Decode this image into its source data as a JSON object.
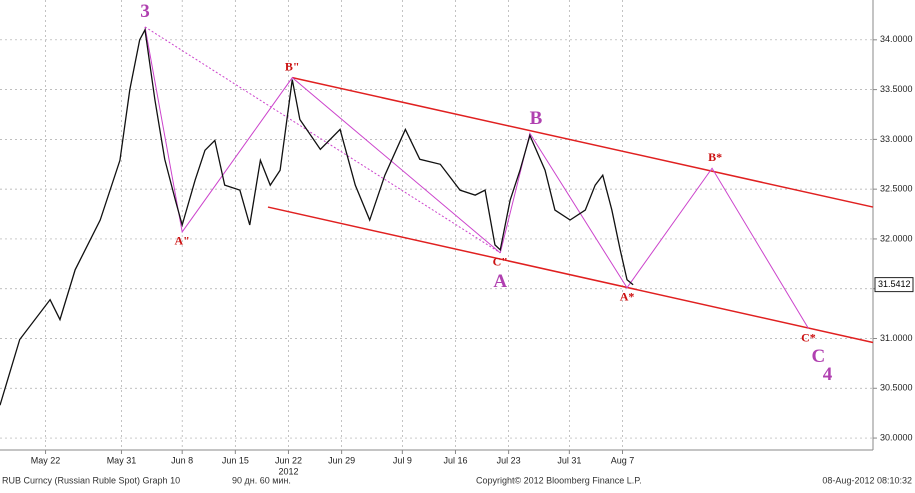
{
  "chart_data": {
    "type": "line",
    "x": [
      0,
      2.6,
      6.6,
      7.9,
      9.9,
      13.2,
      15.8,
      17.1,
      18.4,
      19.1,
      20.4,
      21.7,
      23.1,
      24,
      25.7,
      27,
      28.3,
      29.6,
      31.6,
      32.9,
      34.3,
      35.6,
      36.9,
      38.5,
      39.5,
      42.2,
      44.8,
      46.8,
      48.7,
      50.7,
      53.4,
      55.3,
      58,
      60.6,
      62.6,
      63.9,
      65.2,
      65.9,
      67.2,
      68.5,
      69.8,
      71.8,
      73.1,
      75.1,
      77.1,
      78.4,
      79.4,
      80.6,
      81.7,
      82.6,
      83.4
    ],
    "series": [
      {
        "name": "RUB Curncy",
        "color": "#111111",
        "values": [
          30.33,
          30.99,
          31.39,
          31.19,
          31.69,
          32.19,
          32.79,
          33.5,
          34.0,
          34.1,
          33.4,
          32.8,
          32.39,
          32.14,
          32.59,
          32.89,
          32.99,
          32.54,
          32.49,
          32.14,
          32.79,
          32.54,
          32.69,
          33.6,
          33.2,
          32.9,
          33.1,
          32.54,
          32.19,
          32.64,
          33.1,
          32.8,
          32.75,
          32.49,
          32.44,
          32.49,
          31.94,
          31.89,
          32.39,
          32.69,
          33.04,
          32.69,
          32.29,
          32.19,
          32.29,
          32.54,
          32.64,
          32.29,
          31.89,
          31.59,
          31.54
        ]
      }
    ],
    "xlim": [
      0,
      115
    ],
    "xticks": [
      {
        "value": 6,
        "label": "May 22"
      },
      {
        "value": 16,
        "label": "May 31"
      },
      {
        "value": 24,
        "label": "Jun 8"
      },
      {
        "value": 31,
        "label": "Jun 15"
      },
      {
        "value": 38,
        "label": "Jun 22"
      },
      {
        "value": 45,
        "label": "Jun 29"
      },
      {
        "value": 53,
        "label": "Jul 9"
      },
      {
        "value": 60,
        "label": "Jul 16"
      },
      {
        "value": 67,
        "label": "Jul 23"
      },
      {
        "value": 75,
        "label": "Jul 31"
      },
      {
        "value": 82,
        "label": "Aug 7"
      }
    ],
    "year_label": "2012",
    "ylim": [
      29.88,
      34.4
    ],
    "yticks": [
      {
        "value": 30,
        "label": "30.0000"
      },
      {
        "value": 30.5,
        "label": "30.5000"
      },
      {
        "value": 31,
        "label": "31.0000"
      },
      {
        "value": 31.5,
        "label": "31.5000"
      },
      {
        "value": 32,
        "label": "32.0000"
      },
      {
        "value": 32.5,
        "label": "32.5000"
      },
      {
        "value": 33,
        "label": "33.0000"
      },
      {
        "value": 33.5,
        "label": "33.5000"
      },
      {
        "value": 34,
        "label": "34.0000"
      }
    ],
    "last_price": {
      "value": 31.5412,
      "label": "31.5412"
    },
    "grid": true,
    "trend_lines": [
      {
        "color": "#e02020",
        "style": "solid",
        "x": [
          38.5,
          115
        ],
        "y": [
          33.62,
          32.32
        ]
      },
      {
        "color": "#e02020",
        "style": "solid",
        "x": [
          35.3,
          115
        ],
        "y": [
          32.32,
          30.96
        ]
      },
      {
        "color": "#cc44cc",
        "style": "dotted",
        "x": [
          19.1,
          65.9
        ],
        "y": [
          34.13,
          31.86
        ]
      },
      {
        "color": "#cc44cc",
        "style": "solid",
        "x": [
          19.1,
          24,
          38.5,
          65.9
        ],
        "y": [
          34.13,
          32.07,
          33.62,
          31.86
        ]
      },
      {
        "color": "#cc44cc",
        "style": "solid",
        "x": [
          65.9,
          69.8,
          82.6,
          93.8,
          106.5
        ],
        "y": [
          31.86,
          33.06,
          31.51,
          32.71,
          31.1
        ]
      }
    ],
    "wave_labels": [
      {
        "text": "3",
        "x": 19.1,
        "y": 34.13,
        "color": "#b040b0",
        "size": "large",
        "position": "above"
      },
      {
        "text": "A\"",
        "x": 24,
        "y": 32.07,
        "color": "#cc1111",
        "size": "small",
        "position": "below"
      },
      {
        "text": "B\"",
        "x": 38.5,
        "y": 33.62,
        "color": "#cc1111",
        "size": "small",
        "position": "above"
      },
      {
        "text": "C\"",
        "x": 65.9,
        "y": 31.86,
        "color": "#cc1111",
        "size": "small",
        "position": "below"
      },
      {
        "text": "A",
        "x": 65.9,
        "y": 31.7,
        "color": "#b040b0",
        "size": "large",
        "position": "below"
      },
      {
        "text": "B",
        "x": 70.6,
        "y": 33.06,
        "color": "#b040b0",
        "size": "large",
        "position": "above"
      },
      {
        "text": "A*",
        "x": 82.6,
        "y": 31.51,
        "color": "#cc1111",
        "size": "small",
        "position": "below"
      },
      {
        "text": "B*",
        "x": 94.2,
        "y": 32.71,
        "color": "#cc1111",
        "size": "small",
        "position": "above"
      },
      {
        "text": "C*",
        "x": 106.5,
        "y": 31.1,
        "color": "#cc1111",
        "size": "small",
        "position": "below"
      },
      {
        "text": "C",
        "x": 107.8,
        "y": 30.95,
        "color": "#b040b0",
        "size": "large",
        "position": "below"
      },
      {
        "text": "4",
        "x": 109,
        "y": 30.77,
        "color": "#b040b0",
        "size": "large",
        "position": "below"
      }
    ]
  },
  "footer": {
    "left": "RUB Curncy (Russian Ruble Spot) Graph 10",
    "period": "90 дн. 60 мин.",
    "copyright": "Copyright© 2012 Bloomberg Finance L.P.",
    "timestamp": "08-Aug-2012 08:10:32"
  }
}
